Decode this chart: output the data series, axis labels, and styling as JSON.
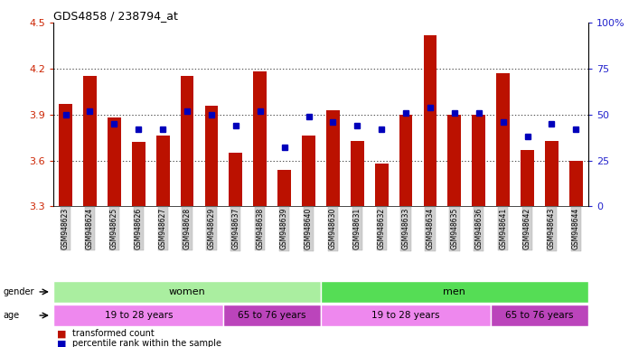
{
  "title": "GDS4858 / 238794_at",
  "samples": [
    "GSM948623",
    "GSM948624",
    "GSM948625",
    "GSM948626",
    "GSM948627",
    "GSM948628",
    "GSM948629",
    "GSM948637",
    "GSM948638",
    "GSM948639",
    "GSM948640",
    "GSM948630",
    "GSM948631",
    "GSM948632",
    "GSM948633",
    "GSM948634",
    "GSM948635",
    "GSM948636",
    "GSM948641",
    "GSM948642",
    "GSM948643",
    "GSM948644"
  ],
  "bar_values": [
    3.97,
    4.15,
    3.88,
    3.72,
    3.76,
    4.15,
    3.96,
    3.65,
    4.18,
    3.54,
    3.76,
    3.93,
    3.73,
    3.58,
    3.9,
    4.42,
    3.9,
    3.9,
    4.17,
    3.67,
    3.73,
    3.6
  ],
  "blue_pct": [
    50,
    52,
    45,
    42,
    42,
    52,
    50,
    44,
    52,
    32,
    49,
    46,
    44,
    42,
    51,
    54,
    51,
    51,
    46,
    38,
    45,
    42
  ],
  "ylim": [
    3.3,
    4.5
  ],
  "yticks_left": [
    3.3,
    3.6,
    3.9,
    4.2,
    4.5
  ],
  "yticks_right": [
    0,
    25,
    50,
    75,
    100
  ],
  "bar_color": "#bb1100",
  "blue_color": "#0000bb",
  "grid_color": "#000000",
  "bar_width": 0.55,
  "gender_color_women": "#aaeea0",
  "gender_color_men": "#55dd55",
  "age_color_light": "#ee88ee",
  "age_color_dark": "#bb44bb",
  "legend_bar_label": "transformed count",
  "legend_blue_label": "percentile rank within the sample",
  "left_color": "#cc2200",
  "right_color": "#2222cc",
  "women_count": 11,
  "men_count": 11,
  "women_young_count": 7,
  "women_old_count": 4,
  "men_young_count": 7,
  "men_old_count": 4
}
